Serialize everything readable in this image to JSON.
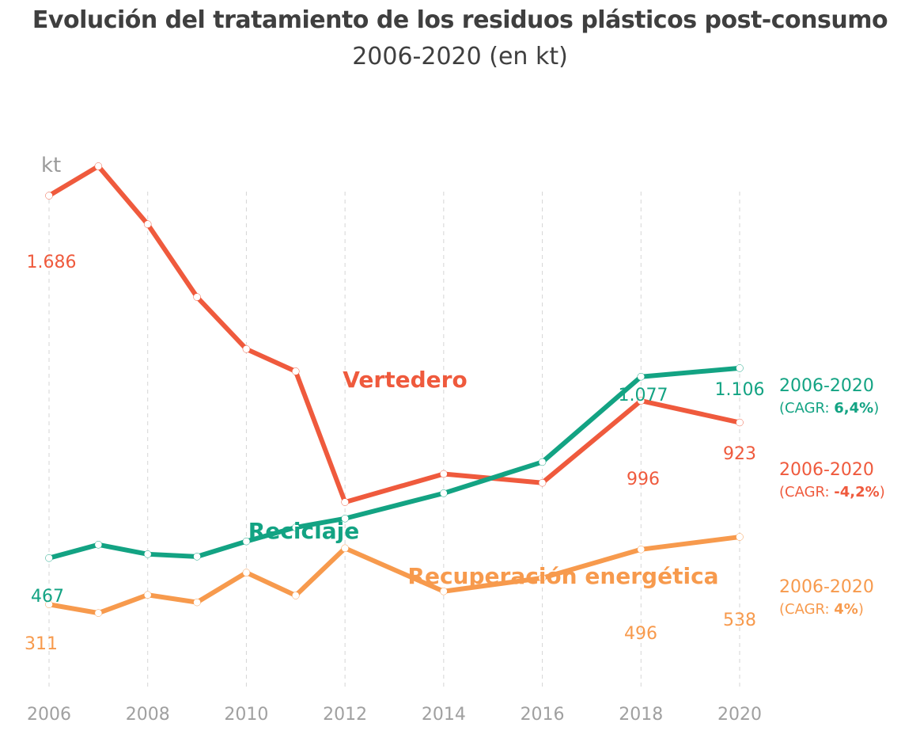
{
  "chart_data": {
    "type": "line",
    "title": "Evolución del tratamiento de los residuos plásticos post-consumo",
    "subtitle": "2006-2020 (en kt)",
    "ylabel": "kt",
    "xlabel": "",
    "x": [
      2006,
      2007,
      2008,
      2009,
      2010,
      2011,
      2012,
      2014,
      2016,
      2018,
      2020
    ],
    "x_ticks": [
      "2006",
      "2008",
      "2010",
      "2012",
      "2014",
      "2016",
      "2018",
      "2020"
    ],
    "ylim": [
      0,
      1950
    ],
    "grid": "vertical-dashed",
    "legend": "inline labels",
    "series": [
      {
        "name": "Vertedero",
        "color": "#ef5a3d",
        "values": [
          1686,
          1785,
          1590,
          1345,
          1170,
          1095,
          655,
          750,
          720,
          996,
          923
        ],
        "point_labels": [
          {
            "x": 2006,
            "text": "1.686"
          },
          {
            "x": 2018,
            "text": "996"
          },
          {
            "x": 2020,
            "text": "923"
          }
        ],
        "cagr_period": "2006-2020",
        "cagr_prefix": "(CAGR: ",
        "cagr_value": "-4,2%",
        "cagr_suffix": ")"
      },
      {
        "name": "Reciclaje",
        "color": "#13a383",
        "values": [
          467,
          512,
          480,
          472,
          523,
          570,
          600,
          685,
          790,
          1077,
          1106
        ],
        "point_labels": [
          {
            "x": 2006,
            "text": "467"
          },
          {
            "x": 2018,
            "text": "1.077"
          },
          {
            "x": 2020,
            "text": "1.106"
          }
        ],
        "cagr_period": "2006-2020",
        "cagr_prefix": "(CAGR: ",
        "cagr_value": "6,4%",
        "cagr_suffix": ")"
      },
      {
        "name": "Recuperación energética",
        "color": "#f79a4d",
        "values": [
          311,
          282,
          343,
          318,
          418,
          341,
          500,
          355,
          400,
          496,
          538
        ],
        "point_labels": [
          {
            "x": 2006,
            "text": "311"
          },
          {
            "x": 2018,
            "text": "496"
          },
          {
            "x": 2020,
            "text": "538"
          }
        ],
        "cagr_period": "2006-2020",
        "cagr_prefix": "(CAGR: ",
        "cagr_value": "4%",
        "cagr_suffix": ")"
      }
    ]
  }
}
